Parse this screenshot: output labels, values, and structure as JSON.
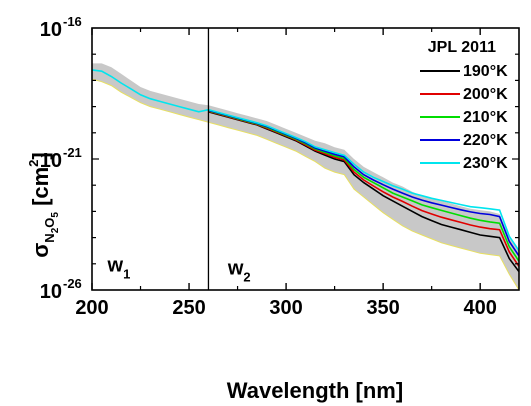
{
  "chart_data": {
    "type": "line",
    "title": "",
    "xlabel": "Wavelength [nm]",
    "ylabel": {
      "symbol": "σ",
      "sub": "N",
      "sub2": "2",
      "mid": "O",
      "sub3": "5",
      "unit": "[cm",
      "unit_sup": "2",
      "unit_end": "]"
    },
    "xlim": [
      200,
      420
    ],
    "ylim_log10": [
      -26,
      -16
    ],
    "log_y": true,
    "x_ticks": [
      {
        "value": 200,
        "label": "200"
      },
      {
        "value": 250,
        "label": "250"
      },
      {
        "value": 300,
        "label": "300"
      },
      {
        "value": 350,
        "label": "350"
      },
      {
        "value": 400,
        "label": "400"
      }
    ],
    "y_ticks": [
      {
        "exp": -16,
        "base": "10",
        "sup": "-16"
      },
      {
        "exp": -21,
        "base": "10",
        "sup": "-21"
      },
      {
        "exp": -26,
        "base": "10",
        "sup": "-26"
      }
    ],
    "legend": {
      "title": "JPL 2011",
      "placement": "top-right"
    },
    "divider_x": 260,
    "regions": [
      {
        "label": "w",
        "sub": "1",
        "x": 208,
        "y_log10": -25.3
      },
      {
        "label": "w",
        "sub": "2",
        "x": 270,
        "y_log10": -25.4
      }
    ],
    "x": [
      200,
      205,
      210,
      215,
      220,
      225,
      230,
      235,
      240,
      245,
      250,
      255,
      260,
      265,
      270,
      275,
      280,
      285,
      290,
      295,
      300,
      305,
      310,
      315,
      320,
      325,
      330,
      335,
      340,
      345,
      350,
      355,
      360,
      365,
      370,
      375,
      380,
      385,
      390,
      395,
      400,
      405,
      410,
      415,
      420
    ],
    "uncertainty_band": {
      "color": "#c8c8c8",
      "upper_log10": [
        -17.35,
        -17.35,
        -17.5,
        -17.75,
        -18.0,
        -18.25,
        -18.4,
        -18.5,
        -18.6,
        -18.7,
        -18.8,
        -18.9,
        -18.95,
        -19.05,
        -19.15,
        -19.25,
        -19.35,
        -19.45,
        -19.55,
        -19.7,
        -19.85,
        -20.0,
        -20.15,
        -20.3,
        -20.4,
        -20.55,
        -20.65,
        -21.0,
        -21.3,
        -21.5,
        -21.7,
        -21.9,
        -22.05,
        -22.25,
        -22.4,
        -22.5,
        -22.6,
        -22.7,
        -22.8,
        -22.9,
        -22.95,
        -23.0,
        -23.1,
        -24.0,
        -24.5
      ],
      "lower_log10": [
        -17.95,
        -18.05,
        -18.2,
        -18.45,
        -18.65,
        -18.85,
        -19.0,
        -19.1,
        -19.2,
        -19.3,
        -19.4,
        -19.5,
        -19.6,
        -19.7,
        -19.8,
        -19.9,
        -20.0,
        -20.1,
        -20.25,
        -20.4,
        -20.55,
        -20.7,
        -20.9,
        -21.1,
        -21.35,
        -21.5,
        -21.6,
        -22.15,
        -22.45,
        -22.75,
        -23.05,
        -23.3,
        -23.55,
        -23.75,
        -23.9,
        -24.05,
        -24.2,
        -24.3,
        -24.4,
        -24.5,
        -24.6,
        -24.65,
        -24.7,
        -25.4,
        -26.0
      ]
    },
    "series": [
      {
        "name": "190°K",
        "color": "#000000",
        "values_log10": [
          null,
          null,
          null,
          null,
          null,
          null,
          null,
          null,
          null,
          null,
          null,
          null,
          -19.2,
          -19.3,
          -19.4,
          -19.5,
          -19.6,
          -19.7,
          -19.85,
          -20.0,
          -20.15,
          -20.3,
          -20.5,
          -20.7,
          -20.85,
          -21.0,
          -21.1,
          -21.6,
          -21.9,
          -22.15,
          -22.4,
          -22.6,
          -22.8,
          -23.0,
          -23.2,
          -23.35,
          -23.5,
          -23.6,
          -23.7,
          -23.8,
          -23.9,
          -23.95,
          -24.0,
          -24.8,
          -25.3
        ]
      },
      {
        "name": "200°K",
        "color": "#e00000",
        "values_log10": [
          null,
          null,
          null,
          null,
          null,
          null,
          null,
          null,
          null,
          null,
          null,
          null,
          -19.18,
          -19.28,
          -19.38,
          -19.48,
          -19.58,
          -19.68,
          -19.82,
          -19.97,
          -20.12,
          -20.27,
          -20.46,
          -20.66,
          -20.8,
          -20.94,
          -21.04,
          -21.5,
          -21.8,
          -22.03,
          -22.25,
          -22.45,
          -22.62,
          -22.8,
          -22.97,
          -23.1,
          -23.22,
          -23.32,
          -23.42,
          -23.52,
          -23.6,
          -23.66,
          -23.7,
          -24.55,
          -25.1
        ]
      },
      {
        "name": "210°K",
        "color": "#00dd00",
        "values_log10": [
          null,
          null,
          null,
          null,
          null,
          null,
          null,
          null,
          null,
          null,
          null,
          null,
          -19.16,
          -19.26,
          -19.36,
          -19.46,
          -19.56,
          -19.66,
          -19.79,
          -19.94,
          -20.09,
          -20.24,
          -20.42,
          -20.62,
          -20.75,
          -20.88,
          -20.98,
          -21.4,
          -21.7,
          -21.9,
          -22.1,
          -22.3,
          -22.45,
          -22.6,
          -22.75,
          -22.86,
          -22.96,
          -23.06,
          -23.16,
          -23.26,
          -23.34,
          -23.4,
          -23.45,
          -24.35,
          -24.9
        ]
      },
      {
        "name": "220°K",
        "color": "#0000dd",
        "values_log10": [
          null,
          null,
          null,
          null,
          null,
          null,
          null,
          null,
          null,
          null,
          null,
          null,
          -19.14,
          -19.24,
          -19.34,
          -19.44,
          -19.54,
          -19.64,
          -19.76,
          -19.91,
          -20.06,
          -20.21,
          -20.38,
          -20.58,
          -20.7,
          -20.82,
          -20.92,
          -21.3,
          -21.6,
          -21.8,
          -21.98,
          -22.15,
          -22.3,
          -22.45,
          -22.57,
          -22.67,
          -22.76,
          -22.85,
          -22.94,
          -23.02,
          -23.08,
          -23.12,
          -23.2,
          -24.15,
          -24.7
        ]
      },
      {
        "name": "230°K",
        "color": "#00e5ee",
        "values_log10": [
          -17.6,
          -17.65,
          -17.85,
          -18.1,
          -18.32,
          -18.55,
          -18.7,
          -18.8,
          -18.9,
          -19.0,
          -19.1,
          -19.2,
          -19.12,
          -19.22,
          -19.32,
          -19.42,
          -19.52,
          -19.62,
          -19.73,
          -19.88,
          -20.03,
          -20.18,
          -20.34,
          -20.54,
          -20.65,
          -20.76,
          -20.86,
          -21.2,
          -21.5,
          -21.7,
          -21.86,
          -22.02,
          -22.15,
          -22.3,
          -22.4,
          -22.5,
          -22.58,
          -22.66,
          -22.74,
          -22.82,
          -22.86,
          -22.9,
          -22.95,
          -23.95,
          -24.5
        ]
      }
    ]
  }
}
